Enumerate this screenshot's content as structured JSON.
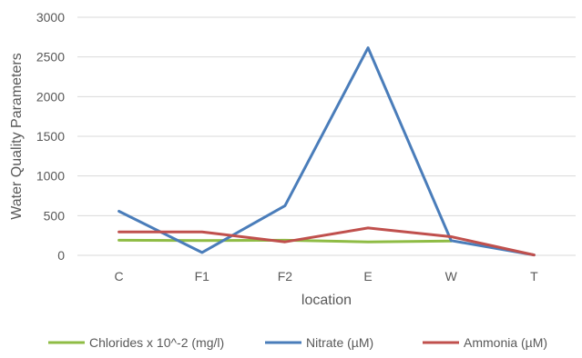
{
  "chart_data": {
    "type": "line",
    "title": "",
    "xlabel": "location",
    "ylabel": "Water Quality Parameters",
    "categories": [
      "C",
      "F1",
      "F2",
      "E",
      "W",
      "T"
    ],
    "ylim": [
      0,
      3000
    ],
    "yticks": [
      0,
      500,
      1000,
      1500,
      2000,
      2500,
      3000
    ],
    "grid": true,
    "legend_position": "bottom",
    "series": [
      {
        "name": "Chlorides x 10^-2 (mg/l)",
        "color": "#8FBC45",
        "values": [
          190,
          185,
          190,
          170,
          180,
          null
        ]
      },
      {
        "name": "Nitrate (µM)",
        "color": "#4A7DBA",
        "values": [
          555,
          35,
          625,
          2615,
          185,
          5
        ]
      },
      {
        "name": "Ammonia (µM)",
        "color": "#C0504D",
        "values": [
          295,
          295,
          170,
          345,
          235,
          5
        ]
      }
    ]
  }
}
